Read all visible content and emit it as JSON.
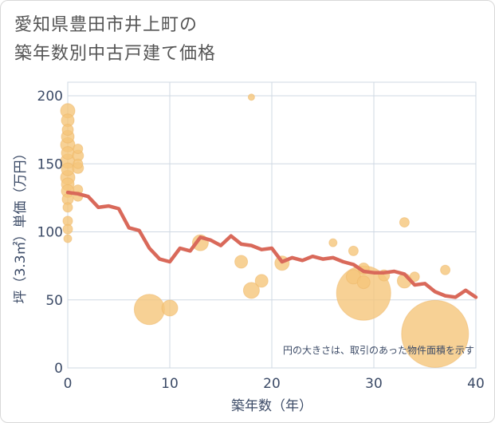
{
  "title_line1": "愛知県豊田市井上町の",
  "title_line2": "築年数別中古戸建て価格",
  "chart_data": {
    "type": "scatter",
    "title": "愛知県豊田市井上町の築年数別中古戸建て価格",
    "xlabel": "築年数（年）",
    "ylabel": "坪（3.3㎡）単価（万円）",
    "xlim": [
      0,
      40
    ],
    "ylim": [
      0,
      210
    ],
    "xticks": [
      "0",
      "10",
      "20",
      "30",
      "40"
    ],
    "yticks": [
      "0",
      "50",
      "100",
      "150",
      "200"
    ],
    "x_tick_values": [
      0,
      10,
      20,
      30,
      40
    ],
    "y_tick_values": [
      0,
      50,
      100,
      150,
      200
    ],
    "grid": true,
    "note": "円の大きさは、取引のあった物件面積を示す",
    "colors": {
      "points": "#f5c57a",
      "line": "#d9695a",
      "grid": "#cfd8e3",
      "text": "#3b4a66"
    },
    "series": [
      {
        "kind": "bubbles",
        "points": [
          {
            "x": 0,
            "y": 189,
            "s": 9
          },
          {
            "x": 0,
            "y": 182,
            "s": 8
          },
          {
            "x": 0,
            "y": 175,
            "s": 7
          },
          {
            "x": 0,
            "y": 170,
            "s": 8
          },
          {
            "x": 0,
            "y": 164,
            "s": 9
          },
          {
            "x": 0,
            "y": 158,
            "s": 8
          },
          {
            "x": 0,
            "y": 152,
            "s": 9
          },
          {
            "x": 0,
            "y": 146,
            "s": 8
          },
          {
            "x": 0,
            "y": 140,
            "s": 9
          },
          {
            "x": 0,
            "y": 135,
            "s": 8
          },
          {
            "x": 0,
            "y": 130,
            "s": 8
          },
          {
            "x": 0,
            "y": 124,
            "s": 7
          },
          {
            "x": 0,
            "y": 118,
            "s": 6
          },
          {
            "x": 0,
            "y": 108,
            "s": 6
          },
          {
            "x": 0,
            "y": 102,
            "s": 6
          },
          {
            "x": 0,
            "y": 95,
            "s": 5
          },
          {
            "x": 1,
            "y": 161,
            "s": 6
          },
          {
            "x": 1,
            "y": 156,
            "s": 7
          },
          {
            "x": 1,
            "y": 150,
            "s": 6
          },
          {
            "x": 1,
            "y": 147,
            "s": 7
          },
          {
            "x": 1,
            "y": 131,
            "s": 6
          },
          {
            "x": 1,
            "y": 126,
            "s": 6
          },
          {
            "x": 8,
            "y": 43,
            "s": 19
          },
          {
            "x": 10,
            "y": 44,
            "s": 10
          },
          {
            "x": 13,
            "y": 92,
            "s": 10
          },
          {
            "x": 17,
            "y": 78,
            "s": 8
          },
          {
            "x": 18,
            "y": 57,
            "s": 10
          },
          {
            "x": 18,
            "y": 199,
            "s": 4
          },
          {
            "x": 19,
            "y": 64,
            "s": 8
          },
          {
            "x": 21,
            "y": 77,
            "s": 9
          },
          {
            "x": 26,
            "y": 92,
            "s": 5
          },
          {
            "x": 28,
            "y": 86,
            "s": 6
          },
          {
            "x": 28,
            "y": 67,
            "s": 9
          },
          {
            "x": 29,
            "y": 73,
            "s": 7
          },
          {
            "x": 29,
            "y": 63,
            "s": 8
          },
          {
            "x": 29,
            "y": 55,
            "s": 34
          },
          {
            "x": 31,
            "y": 68,
            "s": 7
          },
          {
            "x": 33,
            "y": 107,
            "s": 6
          },
          {
            "x": 33,
            "y": 64,
            "s": 9
          },
          {
            "x": 34,
            "y": 67,
            "s": 6
          },
          {
            "x": 36,
            "y": 25,
            "s": 42
          },
          {
            "x": 37,
            "y": 72,
            "s": 6
          }
        ]
      },
      {
        "kind": "line",
        "points": [
          {
            "x": 0,
            "y": 129
          },
          {
            "x": 1,
            "y": 128
          },
          {
            "x": 2,
            "y": 126
          },
          {
            "x": 3,
            "y": 118
          },
          {
            "x": 4,
            "y": 119
          },
          {
            "x": 5,
            "y": 117
          },
          {
            "x": 6,
            "y": 103
          },
          {
            "x": 7,
            "y": 101
          },
          {
            "x": 8,
            "y": 88
          },
          {
            "x": 9,
            "y": 80
          },
          {
            "x": 10,
            "y": 78
          },
          {
            "x": 11,
            "y": 88
          },
          {
            "x": 12,
            "y": 86
          },
          {
            "x": 13,
            "y": 96
          },
          {
            "x": 14,
            "y": 94
          },
          {
            "x": 15,
            "y": 90
          },
          {
            "x": 16,
            "y": 97
          },
          {
            "x": 17,
            "y": 91
          },
          {
            "x": 18,
            "y": 90
          },
          {
            "x": 19,
            "y": 87
          },
          {
            "x": 20,
            "y": 88
          },
          {
            "x": 21,
            "y": 78
          },
          {
            "x": 22,
            "y": 81
          },
          {
            "x": 23,
            "y": 79
          },
          {
            "x": 24,
            "y": 82
          },
          {
            "x": 25,
            "y": 80
          },
          {
            "x": 26,
            "y": 81
          },
          {
            "x": 27,
            "y": 78
          },
          {
            "x": 28,
            "y": 76
          },
          {
            "x": 29,
            "y": 71
          },
          {
            "x": 30,
            "y": 70
          },
          {
            "x": 31,
            "y": 70
          },
          {
            "x": 32,
            "y": 71
          },
          {
            "x": 33,
            "y": 69
          },
          {
            "x": 34,
            "y": 61
          },
          {
            "x": 35,
            "y": 62
          },
          {
            "x": 36,
            "y": 56
          },
          {
            "x": 37,
            "y": 53
          },
          {
            "x": 38,
            "y": 52
          },
          {
            "x": 39,
            "y": 57
          },
          {
            "x": 40,
            "y": 52
          }
        ]
      }
    ]
  }
}
